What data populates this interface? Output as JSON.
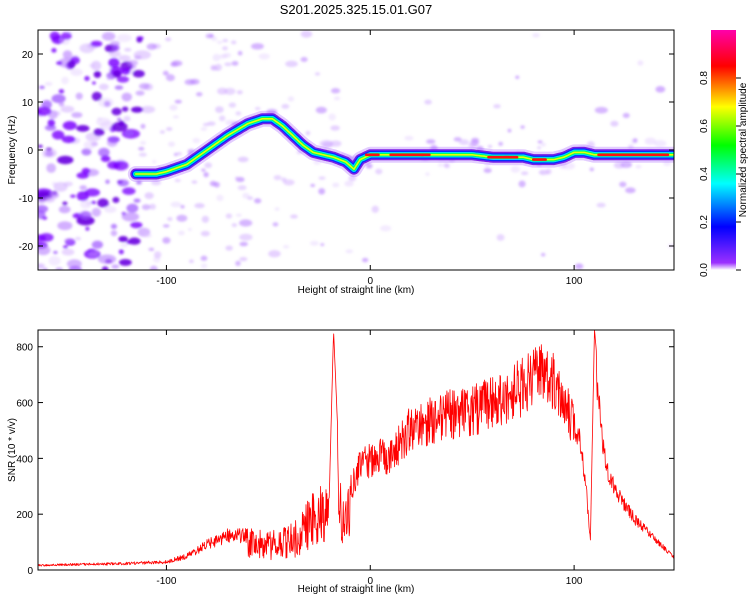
{
  "title": "S201.2025.325.15.01.G07",
  "chart_data": [
    {
      "type": "heatmap",
      "name": "spectrogram",
      "xlabel": "Height of straight line (km)",
      "ylabel": "Frequency (Hz)",
      "xlim": [
        -163,
        149
      ],
      "ylim": [
        -25,
        25
      ],
      "xticks": [
        -100,
        0,
        100
      ],
      "yticks": [
        -20,
        -10,
        0,
        10,
        20
      ],
      "colorbar": {
        "label": "Normalized spectral amplitude",
        "range": [
          0.0,
          1.0
        ],
        "ticks": [
          0.0,
          0.2,
          0.4,
          0.6,
          0.8
        ],
        "colormap": [
          "#7a00ff",
          "#0000ff",
          "#00ffff",
          "#00ff00",
          "#ffff00",
          "#ff0000",
          "#ff00aa"
        ]
      },
      "ridge": {
        "x": [
          -115,
          -105,
          -100,
          -90,
          -80,
          -70,
          -60,
          -53,
          -48,
          -43,
          -38,
          -33,
          -28,
          -23,
          -18,
          -12,
          -8,
          -5,
          0,
          10,
          30,
          50,
          60,
          70,
          75,
          80,
          85,
          90,
          95,
          100,
          105,
          110,
          115,
          130,
          149
        ],
        "y": [
          -5,
          -5,
          -4.5,
          -3,
          0,
          3,
          5.5,
          6.5,
          6.5,
          5,
          3,
          1,
          -0.5,
          -1,
          -1.5,
          -2.5,
          -4,
          -2,
          -1,
          -1,
          -1,
          -1,
          -1.5,
          -1.5,
          -1.5,
          -2,
          -2,
          -2,
          -1.5,
          -0.5,
          -0.5,
          -1,
          -1,
          -1,
          -1
        ]
      }
    },
    {
      "type": "line",
      "name": "snr",
      "xlabel": "Height of straight line (km)",
      "ylabel": "SNR (10 * v/v)",
      "xlim": [
        -163,
        149
      ],
      "ylim": [
        0,
        860
      ],
      "xticks": [
        -100,
        0,
        100
      ],
      "yticks": [
        0,
        200,
        400,
        600,
        800
      ],
      "color": "#ff0000",
      "series": [
        {
          "name": "SNR",
          "x": [
            -163,
            -140,
            -120,
            -100,
            -90,
            -80,
            -70,
            -60,
            -50,
            -40,
            -35,
            -30,
            -25,
            -20,
            -18,
            -15,
            -10,
            -5,
            0,
            10,
            20,
            30,
            40,
            50,
            60,
            70,
            80,
            85,
            90,
            95,
            100,
            103,
            105,
            108,
            110,
            115,
            120,
            130,
            140,
            149
          ],
          "y": [
            20,
            25,
            28,
            35,
            60,
            110,
            150,
            150,
            140,
            160,
            190,
            260,
            320,
            300,
            860,
            330,
            330,
            430,
            460,
            480,
            590,
            620,
            650,
            660,
            700,
            740,
            790,
            830,
            790,
            720,
            600,
            500,
            400,
            120,
            860,
            440,
            320,
            200,
            120,
            50
          ]
        }
      ]
    }
  ]
}
